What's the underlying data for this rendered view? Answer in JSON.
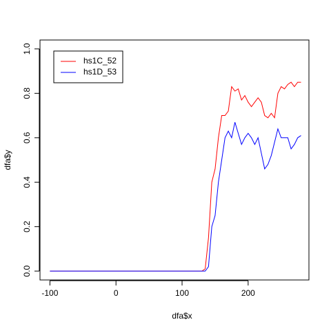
{
  "chart_data": {
    "type": "line",
    "x_label": "dfa$x",
    "y_label": "dfa$y",
    "x": [
      -100,
      130,
      135,
      140,
      145,
      150,
      155,
      160,
      165,
      170,
      175,
      180,
      185,
      190,
      195,
      200,
      205,
      210,
      215,
      220,
      225,
      230,
      235,
      240,
      245,
      250,
      255,
      260,
      265,
      270,
      275,
      280
    ],
    "series": [
      {
        "name": "hs1C_52",
        "color": "#ff0000",
        "values": [
          0,
          0,
          0.01,
          0.15,
          0.4,
          0.46,
          0.6,
          0.7,
          0.7,
          0.72,
          0.83,
          0.81,
          0.82,
          0.77,
          0.79,
          0.76,
          0.74,
          0.76,
          0.78,
          0.76,
          0.7,
          0.69,
          0.71,
          0.69,
          0.8,
          0.83,
          0.82,
          0.84,
          0.85,
          0.83,
          0.85,
          0.85
        ]
      },
      {
        "name": "hs1D_53",
        "color": "#0000ff",
        "values": [
          0,
          0,
          0,
          0.02,
          0.2,
          0.25,
          0.4,
          0.5,
          0.6,
          0.63,
          0.6,
          0.67,
          0.62,
          0.57,
          0.6,
          0.62,
          0.6,
          0.57,
          0.6,
          0.53,
          0.46,
          0.48,
          0.52,
          0.58,
          0.64,
          0.6,
          0.6,
          0.6,
          0.55,
          0.57,
          0.6,
          0.61
        ]
      }
    ],
    "xlim": [
      -115,
      292
    ],
    "ylim": [
      -0.04,
      1.04
    ],
    "xticks": [
      -100,
      0,
      100,
      200
    ],
    "yticks": [
      {
        "value": 0,
        "label": "0.0"
      },
      0.2,
      0.4,
      0.6,
      0.8,
      {
        "value": 1,
        "label": "1.0"
      }
    ],
    "legend": "topleft"
  }
}
